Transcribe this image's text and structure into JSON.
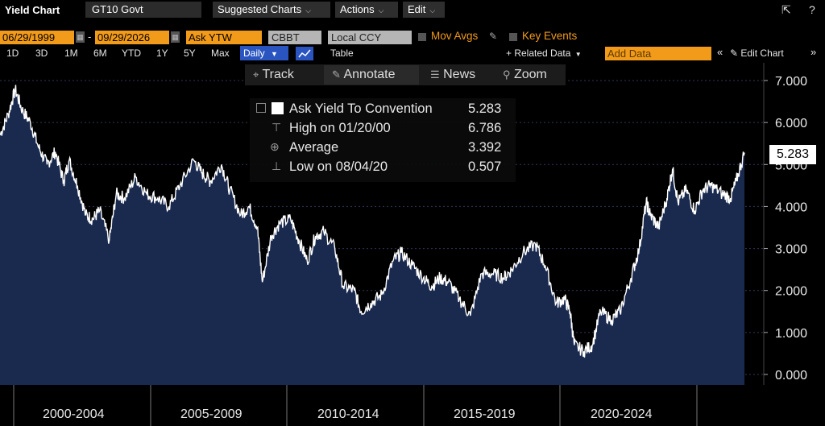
{
  "toolbar": {
    "title": "Yield Chart",
    "ticker": "GT10 Govt",
    "menus": [
      "Suggested Charts",
      "Actions",
      "Edit"
    ],
    "icons": [
      "share-icon",
      "help-icon"
    ]
  },
  "settings": {
    "start_date": "06/29/1999",
    "end_date": "09/29/2026",
    "field": "Ask YTW",
    "source": "CBBT",
    "currency": "Local CCY",
    "mov_avgs": "Mov Avgs",
    "key_events": "Key Events"
  },
  "periods": [
    "1D",
    "3D",
    "1M",
    "6M",
    "YTD",
    "1Y",
    "5Y",
    "Max"
  ],
  "frequency": "Daily",
  "table_label": "Table",
  "related_data": "+ Related Data",
  "add_data_placeholder": "Add Data",
  "edit_chart": "Edit Chart",
  "tools": [
    "Track",
    "Annotate",
    "News",
    "Zoom"
  ],
  "legend": {
    "series_name": "Ask Yield To Convention",
    "last": "5.283",
    "high_label": "High on 01/20/00",
    "high": "6.786",
    "avg_label": "Average",
    "avg": "3.392",
    "low_label": "Low on 08/04/20",
    "low": "0.507"
  },
  "last_value_label": "5.283",
  "colors": {
    "line": "#ffffff",
    "fill": "#1a2a4f",
    "accent": "#f29a1a",
    "daily": "#2a55c0"
  },
  "chart_data": {
    "type": "area",
    "title": "",
    "xlabel": "",
    "ylabel": "",
    "ylim": [
      0,
      7
    ],
    "y_ticks": [
      "0.000",
      "1.000",
      "2.000",
      "3.000",
      "4.000",
      "5.000",
      "6.000",
      "7.000"
    ],
    "x_period_labels": [
      "2000-2004",
      "2005-2009",
      "2010-2014",
      "2015-2019",
      "2020-2024"
    ],
    "series": [
      {
        "name": "Ask Yield To Convention",
        "x": [
          1999.5,
          1999.8,
          2000.05,
          2000.3,
          2000.6,
          2000.9,
          2001.2,
          2001.5,
          2001.8,
          2002.0,
          2002.3,
          2002.6,
          2002.85,
          2003.1,
          2003.45,
          2003.7,
          2004.0,
          2004.4,
          2004.8,
          2005.2,
          2005.6,
          2006.0,
          2006.5,
          2006.8,
          2007.1,
          2007.5,
          2007.8,
          2008.2,
          2008.5,
          2008.8,
          2008.98,
          2009.3,
          2009.6,
          2010.0,
          2010.3,
          2010.6,
          2010.9,
          2011.2,
          2011.6,
          2011.9,
          2012.3,
          2012.55,
          2012.9,
          2013.3,
          2013.7,
          2014.0,
          2014.4,
          2014.8,
          2015.1,
          2015.4,
          2015.7,
          2016.1,
          2016.5,
          2016.9,
          2017.3,
          2017.7,
          2018.0,
          2018.4,
          2018.85,
          2019.2,
          2019.6,
          2019.9,
          2020.1,
          2020.25,
          2020.6,
          2020.9,
          2021.2,
          2021.6,
          2021.9,
          2022.3,
          2022.6,
          2022.85,
          2023.0,
          2023.3,
          2023.6,
          2023.8,
          2024.0,
          2024.3,
          2024.6,
          2024.9,
          2025.2,
          2025.6,
          2025.9,
          2026.1,
          2026.4
        ],
        "y": [
          5.7,
          6.2,
          6.786,
          6.3,
          6.0,
          5.4,
          5.0,
          5.3,
          4.6,
          5.1,
          4.5,
          3.8,
          3.7,
          3.9,
          3.2,
          4.3,
          4.2,
          4.7,
          4.3,
          4.2,
          4.0,
          4.5,
          5.1,
          4.8,
          4.6,
          5.0,
          4.4,
          3.8,
          4.0,
          3.5,
          2.2,
          3.3,
          3.6,
          3.7,
          3.2,
          2.7,
          3.3,
          3.4,
          3.0,
          2.1,
          2.0,
          1.5,
          1.7,
          1.9,
          2.7,
          2.9,
          2.6,
          2.3,
          2.1,
          2.3,
          2.2,
          1.8,
          1.4,
          2.4,
          2.4,
          2.3,
          2.5,
          2.9,
          3.1,
          2.6,
          1.7,
          1.8,
          1.5,
          0.7,
          0.55,
          0.7,
          1.5,
          1.3,
          1.5,
          2.3,
          3.0,
          4.1,
          3.8,
          3.5,
          4.2,
          4.9,
          4.1,
          4.4,
          3.9,
          4.4,
          4.5,
          4.3,
          4.2,
          4.6,
          5.283
        ]
      }
    ]
  }
}
